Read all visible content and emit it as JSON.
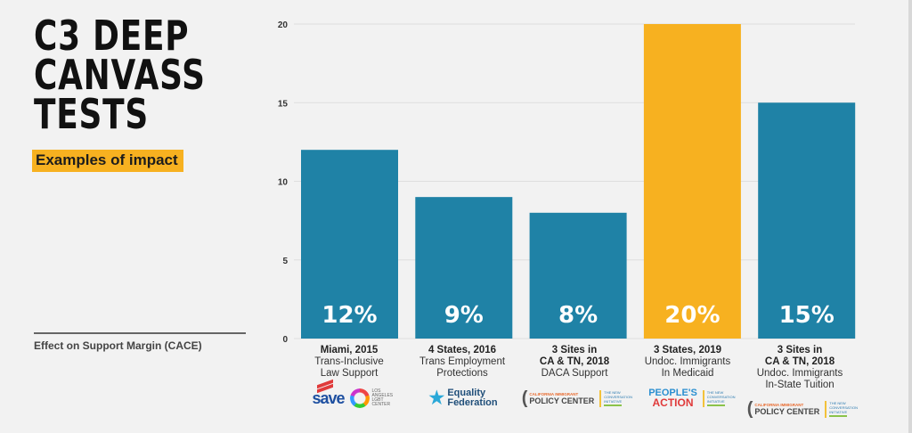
{
  "header": {
    "title_lines": [
      "C3 DEEP",
      "CANVASS",
      "TESTS"
    ],
    "subtitle": "Examples of impact"
  },
  "colors": {
    "background": "#f2f2f2",
    "bar_default": "#1f82a6",
    "bar_highlight": "#f7b120",
    "gridline": "#dedede",
    "accent": "#f7b120"
  },
  "chart_data": {
    "type": "bar",
    "title": "C3 Deep Canvass Tests",
    "subtitle": "Examples of impact",
    "xlabel": "",
    "ylabel": "Effect on Support Margin (CACE)",
    "ylim": [
      0,
      20
    ],
    "yticks": [
      0,
      5,
      10,
      15,
      20
    ],
    "grid": true,
    "categories": [
      {
        "line1": "Miami, 2015",
        "line2": "Trans-Inclusive",
        "line3": "Law Support",
        "bold_lines": 1
      },
      {
        "line1": "4 States, 2016",
        "line2": "Trans Employment",
        "line3": "Protections",
        "bold_lines": 1
      },
      {
        "line1": "3 Sites in",
        "line2": "CA & TN, 2018",
        "line3": "DACA Support",
        "bold_lines": 2
      },
      {
        "line1": "3 States, 2019",
        "line2": "Undoc. Immigrants",
        "line3": "In Medicaid",
        "bold_lines": 1
      },
      {
        "line1": "3 Sites in",
        "line2": "CA & TN, 2018",
        "line3": "Undoc. Immigrants",
        "line4": "In-State Tuition",
        "bold_lines": 2
      }
    ],
    "values": [
      12,
      9,
      8,
      20,
      15
    ],
    "data_labels": [
      "12%",
      "9%",
      "8%",
      "20%",
      "15%"
    ],
    "highlight_index": 3
  },
  "partner_logos": [
    {
      "names": [
        "SAVE",
        "Los Angeles LGBT Center"
      ],
      "text": [
        "save",
        "LOS ANGELES LGBT CENTER"
      ]
    },
    {
      "names": [
        "Equality Federation"
      ],
      "text": [
        "Equality",
        "Federation"
      ]
    },
    {
      "names": [
        "California Immigrant Policy Center",
        "The New Conversation Initiative"
      ],
      "text": [
        "CALIFORNIA IMMIGRANT",
        "POLICY CENTER",
        "THE NEW CONVERSATION INITIATIVE"
      ]
    },
    {
      "names": [
        "People's Action",
        "The New Conversation Initiative"
      ],
      "text": [
        "PEOPLE'S",
        "ACTION",
        "THE NEW CONVERSATION INITIATIVE"
      ]
    },
    {
      "names": [
        "California Immigrant Policy Center",
        "The New Conversation Initiative"
      ],
      "text": [
        "CALIFORNIA IMMIGRANT",
        "POLICY CENTER",
        "THE NEW CONVERSATION INITIATIVE"
      ]
    }
  ]
}
